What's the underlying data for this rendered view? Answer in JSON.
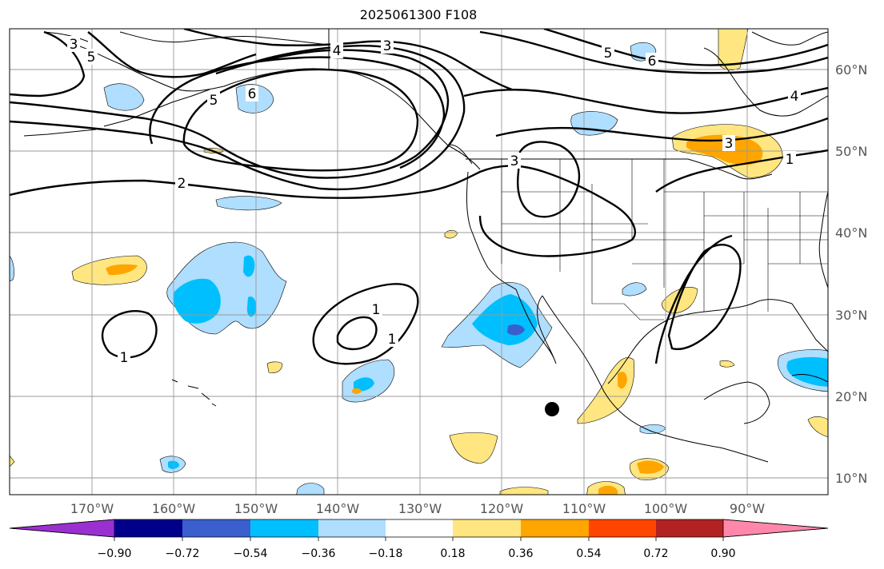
{
  "title": "2025061300 F108",
  "map": {
    "lon_ticks": [
      "170°W",
      "160°W",
      "150°W",
      "140°W",
      "130°W",
      "120°W",
      "110°W",
      "100°W",
      "90°W"
    ],
    "lat_ticks": [
      "60°N",
      "50°N",
      "40°N",
      "30°N",
      "20°N",
      "10°N"
    ],
    "contour_labels": [
      "3",
      "4",
      "5",
      "5",
      "6",
      "6",
      "5",
      "2",
      "4",
      "3",
      "1",
      "3",
      "1",
      "1",
      "1",
      "3"
    ],
    "colors": {
      "contour": "#000000",
      "grid": "#999999",
      "coast": "#000000"
    }
  },
  "colorbar": {
    "tick_labels": [
      "−0.90",
      "−0.72",
      "−0.54",
      "−0.36",
      "−0.18",
      "0.18",
      "0.36",
      "0.54",
      "0.72",
      "0.90"
    ],
    "colors": [
      "#9b30d0",
      "#00008b",
      "#3a5fcd",
      "#00bfff",
      "#afdeff",
      "#ffffff",
      "#ffe680",
      "#ffa500",
      "#ff4500",
      "#b22222",
      "#ff88aa"
    ]
  }
}
